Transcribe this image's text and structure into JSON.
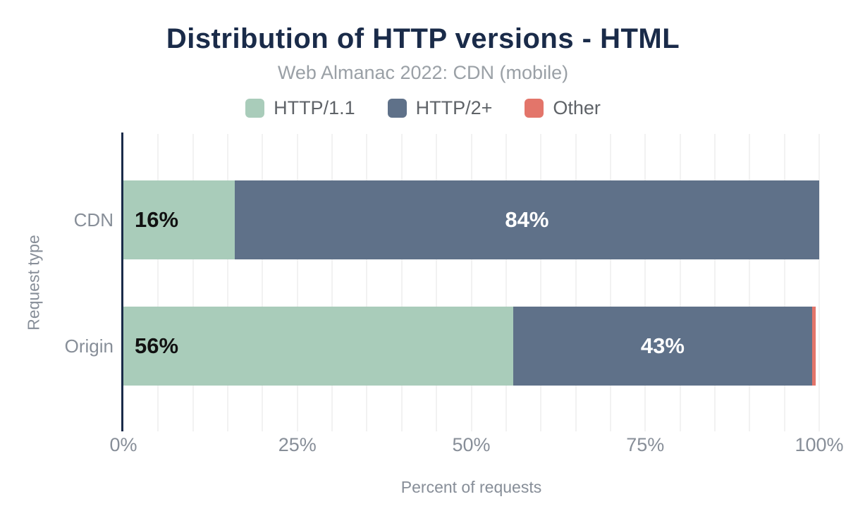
{
  "chart_data": {
    "type": "bar",
    "orientation": "horizontal",
    "stacked": true,
    "title": "Distribution of HTTP versions - HTML",
    "subtitle": "Web Almanac 2022: CDN (mobile)",
    "xlabel": "Percent of requests",
    "ylabel": "Request type",
    "categories": [
      "CDN",
      "Origin"
    ],
    "series": [
      {
        "name": "HTTP/1.1",
        "color": "#a9ccba",
        "values": [
          16,
          56
        ]
      },
      {
        "name": "HTTP/2+",
        "color": "#5f7189",
        "values": [
          84,
          43
        ]
      },
      {
        "name": "Other",
        "color": "#e3756a",
        "values": [
          0,
          0.5
        ]
      }
    ],
    "segment_labels": [
      [
        "16%",
        "84%",
        ""
      ],
      [
        "56%",
        "43%",
        ""
      ]
    ],
    "x_ticks": [
      {
        "label": "0%",
        "value": 0
      },
      {
        "label": "25%",
        "value": 25
      },
      {
        "label": "50%",
        "value": 50
      },
      {
        "label": "75%",
        "value": 75
      },
      {
        "label": "100%",
        "value": 100
      }
    ],
    "xlim": [
      0,
      100
    ],
    "grid": {
      "minor_step": 5,
      "color": "#f2f2f2",
      "orientation": "vertical"
    },
    "legend_position": "top",
    "axis_line_color": "#1a2b49",
    "value_label_colors": {
      "on_light_segment": "#111111",
      "on_dark_segment": "#ffffff"
    },
    "text_colors": {
      "title": "#1a2b49",
      "subtitle": "#9aa0a6",
      "legend": "#5f6368",
      "axis": "#878e98"
    }
  }
}
